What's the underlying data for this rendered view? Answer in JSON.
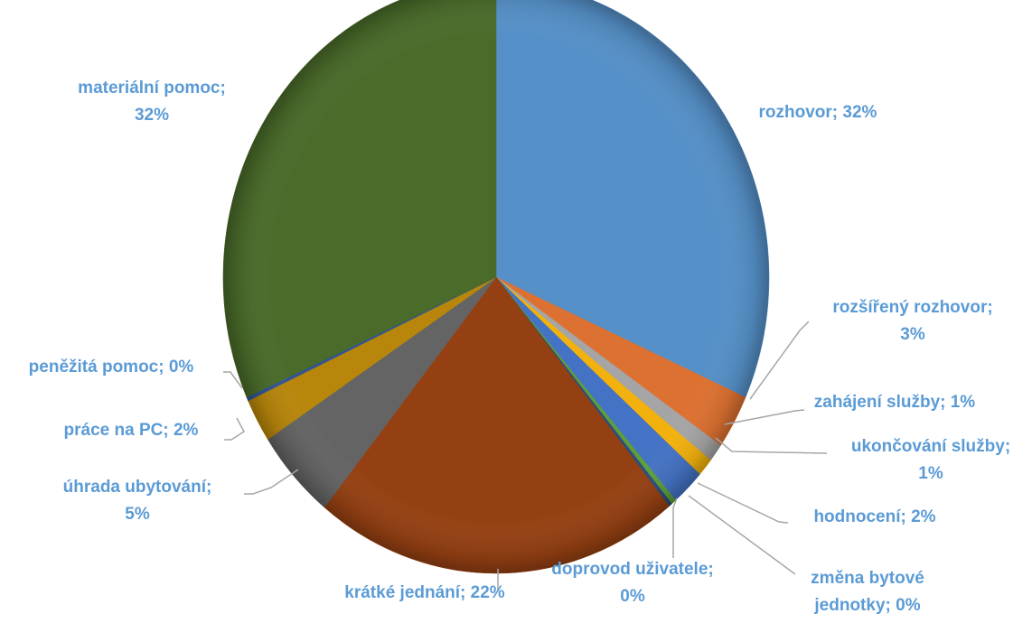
{
  "chart_data": {
    "type": "pie",
    "legend": "none",
    "slices": [
      {
        "label_lines": [
          "rozhovor; 32%"
        ],
        "category": "rozhovor",
        "value": 32,
        "percent_label": "32%",
        "color": "#5590C8"
      },
      {
        "label_lines": [
          "rozšířený rozhovor;",
          "3%"
        ],
        "category": "rozšířený rozhovor",
        "value": 3,
        "percent_label": "3%",
        "color": "#DD7131"
      },
      {
        "label_lines": [
          "zahájení služby; 1%"
        ],
        "category": "zahájení služby",
        "value": 1,
        "percent_label": "1%",
        "color": "#A5A5A5"
      },
      {
        "label_lines": [
          "ukončování služby;",
          "1%"
        ],
        "category": "ukončování služby",
        "value": 1,
        "percent_label": "1%",
        "color": "#F2B10C"
      },
      {
        "label_lines": [
          "hodnocení; 2%"
        ],
        "category": "hodnocení",
        "value": 2,
        "percent_label": "2%",
        "color": "#4472C4"
      },
      {
        "label_lines": [
          "změna bytové",
          "jednotky; 0%"
        ],
        "category": "změna bytové jednotky",
        "value": 0.3,
        "percent_label": "0%",
        "color": "#5E9E3A"
      },
      {
        "label_lines": [
          "doprovod uživatele;",
          "0%"
        ],
        "category": "doprovod uživatele",
        "value": 0.2,
        "percent_label": "0%",
        "color": "#2A4E80"
      },
      {
        "label_lines": [
          "krátké jednání; 22%"
        ],
        "category": "krátké jednání",
        "value": 22,
        "percent_label": "22%",
        "color": "#954012"
      },
      {
        "label_lines": [
          "úhrada ubytování;",
          "5%"
        ],
        "category": "úhrada ubytování",
        "value": 5,
        "percent_label": "5%",
        "color": "#646464"
      },
      {
        "label_lines": [
          "práce na PC; 2%"
        ],
        "category": "práce na PC",
        "value": 2.4,
        "percent_label": "2%",
        "color": "#B8860B"
      },
      {
        "label_lines": [
          "peněžitá pomoc; 0%"
        ],
        "category": "peněžitá pomoc",
        "value": 0.2,
        "percent_label": "0%",
        "color": "#2F5597"
      },
      {
        "label_lines": [
          "materiální pomoc;",
          "32%"
        ],
        "category": "materiální pomoc",
        "value": 32,
        "percent_label": "32%",
        "color": "#4A6B2A"
      }
    ],
    "label_color": "#5B9BD5",
    "leader_line_color": "#A6A6A6"
  }
}
